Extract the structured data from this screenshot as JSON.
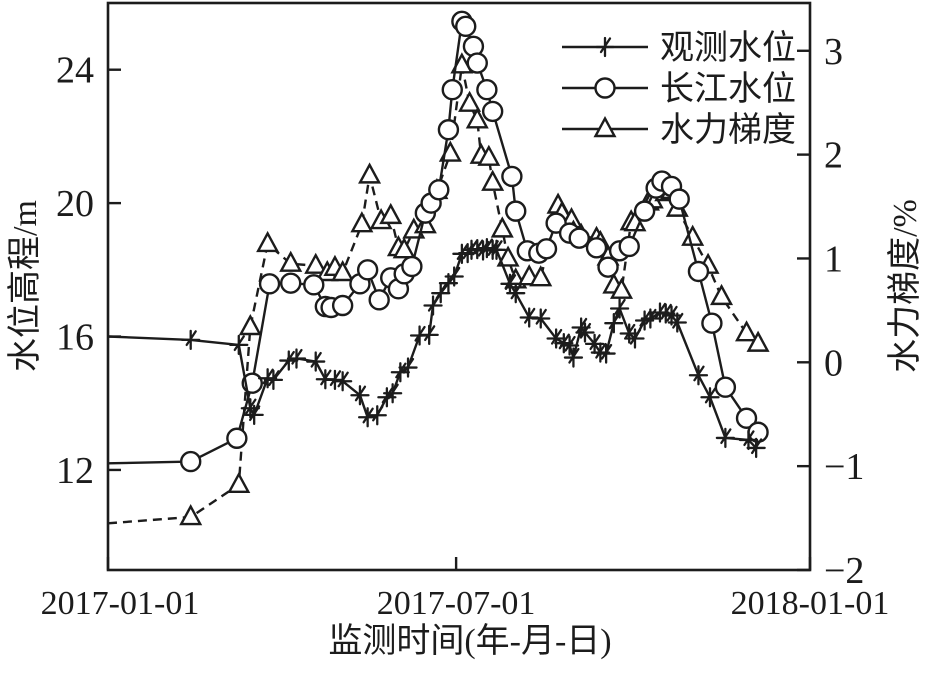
{
  "figure": {
    "background": "#ffffff",
    "ink_color": "#1c1c1c"
  },
  "chart_data": {
    "type": "line",
    "title": "",
    "xlabel": "监测时间(年-月-日)",
    "ylabel_left": "水位高程/m",
    "ylabel_right": "水力梯度/%",
    "grid": false,
    "legend_position": "top-right-inside",
    "x_unit": "days_since_2017-01-01",
    "xlim_days": [
      0,
      365
    ],
    "x_ticks": [
      {
        "day": 0,
        "label": "2017-01-01"
      },
      {
        "day": 181,
        "label": "2017-07-01"
      },
      {
        "day": 365,
        "label": "2018-01-01"
      }
    ],
    "ylim_left": [
      9,
      26
    ],
    "yticks_left": [
      12,
      16,
      20,
      24
    ],
    "ylim_right": [
      -2,
      3.46
    ],
    "yticks_right": [
      -2,
      -1,
      0,
      1,
      2,
      3
    ],
    "series": [
      {
        "key": "observed-water-level",
        "name": "观测水位",
        "axis": "left",
        "marker": "plus",
        "line": "solid",
        "points": [
          [
            0,
            16.0
          ],
          [
            43,
            15.9
          ],
          [
            68,
            15.75
          ],
          [
            74,
            13.85
          ],
          [
            76,
            13.65
          ],
          [
            83,
            14.75
          ],
          [
            86,
            14.7
          ],
          [
            94,
            15.28
          ],
          [
            98,
            15.34
          ],
          [
            108,
            15.25
          ],
          [
            113,
            14.72
          ],
          [
            118,
            14.7
          ],
          [
            122,
            14.66
          ],
          [
            131,
            14.24
          ],
          [
            135,
            13.58
          ],
          [
            140,
            13.64
          ],
          [
            145,
            14.18
          ],
          [
            148,
            14.3
          ],
          [
            152,
            14.93
          ],
          [
            156,
            15.07
          ],
          [
            162,
            16.03
          ],
          [
            167,
            16.05
          ],
          [
            169,
            16.93
          ],
          [
            173,
            17.3
          ],
          [
            177,
            17.6
          ],
          [
            180,
            17.8
          ],
          [
            184,
            18.48
          ],
          [
            187,
            18.5
          ],
          [
            189,
            18.6
          ],
          [
            192,
            18.62
          ],
          [
            195,
            18.58
          ],
          [
            197,
            18.65
          ],
          [
            200,
            18.6
          ],
          [
            202,
            18.6
          ],
          [
            209,
            17.58
          ],
          [
            212,
            17.3
          ],
          [
            219,
            16.57
          ],
          [
            225,
            16.54
          ],
          [
            233,
            15.94
          ],
          [
            237,
            15.8
          ],
          [
            240,
            15.73
          ],
          [
            242,
            15.37
          ],
          [
            246,
            16.27
          ],
          [
            248,
            16.12
          ],
          [
            253,
            15.78
          ],
          [
            256,
            15.52
          ],
          [
            259,
            15.49
          ],
          [
            263,
            16.4
          ],
          [
            266,
            16.84
          ],
          [
            271,
            16.09
          ],
          [
            274,
            15.94
          ],
          [
            279,
            16.48
          ],
          [
            282,
            16.54
          ],
          [
            287,
            16.72
          ],
          [
            290,
            16.69
          ],
          [
            293,
            16.63
          ],
          [
            296,
            16.42
          ],
          [
            307,
            14.84
          ],
          [
            313,
            14.18
          ],
          [
            321,
            12.96
          ],
          [
            333,
            12.9
          ],
          [
            337,
            12.66
          ]
        ]
      },
      {
        "key": "yangtze-river-level",
        "name": "长江水位",
        "axis": "left",
        "marker": "circle",
        "line": "solid",
        "points": [
          [
            0,
            12.2
          ],
          [
            43,
            12.25
          ],
          [
            67,
            12.95
          ],
          [
            75,
            14.6
          ],
          [
            84,
            17.58
          ],
          [
            95,
            17.6
          ],
          [
            107,
            17.55
          ],
          [
            113,
            16.9
          ],
          [
            116,
            16.87
          ],
          [
            122,
            16.93
          ],
          [
            131,
            17.58
          ],
          [
            135,
            18.0
          ],
          [
            141,
            17.1
          ],
          [
            147,
            17.76
          ],
          [
            151,
            17.43
          ],
          [
            154,
            17.88
          ],
          [
            158,
            18.1
          ],
          [
            165,
            19.7
          ],
          [
            168,
            20.0
          ],
          [
            172,
            20.4
          ],
          [
            177,
            22.2
          ],
          [
            179,
            23.4
          ],
          [
            184,
            25.45
          ],
          [
            186,
            25.3
          ],
          [
            190,
            24.7
          ],
          [
            192,
            24.2
          ],
          [
            197,
            23.4
          ],
          [
            200,
            22.75
          ],
          [
            210,
            20.8
          ],
          [
            212,
            19.76
          ],
          [
            218,
            18.57
          ],
          [
            224,
            18.5
          ],
          [
            228,
            18.63
          ],
          [
            233,
            19.4
          ],
          [
            240,
            19.1
          ],
          [
            245,
            18.95
          ],
          [
            254,
            18.66
          ],
          [
            260,
            18.08
          ],
          [
            266,
            18.57
          ],
          [
            271,
            18.7
          ],
          [
            279,
            19.76
          ],
          [
            285,
            20.45
          ],
          [
            288,
            20.66
          ],
          [
            293,
            20.5
          ],
          [
            297,
            20.12
          ],
          [
            307,
            17.95
          ],
          [
            314,
            16.4
          ],
          [
            321,
            14.48
          ],
          [
            332,
            13.55
          ],
          [
            338,
            13.13
          ]
        ]
      },
      {
        "key": "hydraulic-gradient",
        "name": "水力梯度",
        "axis": "right",
        "marker": "triangle",
        "line": "dashed",
        "points": [
          [
            0,
            -1.55
          ],
          [
            43,
            -1.49
          ],
          [
            68,
            -1.18
          ],
          [
            74,
            0.34
          ],
          [
            83,
            1.14
          ],
          [
            95,
            0.95
          ],
          [
            108,
            0.93
          ],
          [
            114,
            0.86
          ],
          [
            118,
            0.91
          ],
          [
            122,
            0.86
          ],
          [
            132,
            1.33
          ],
          [
            136,
            1.8
          ],
          [
            142,
            1.36
          ],
          [
            147,
            1.41
          ],
          [
            151,
            1.1
          ],
          [
            154,
            1.08
          ],
          [
            159,
            1.27
          ],
          [
            165,
            1.32
          ],
          [
            171,
            1.65
          ],
          [
            178,
            2.01
          ],
          [
            184,
            2.86
          ],
          [
            188,
            2.49
          ],
          [
            192,
            2.33
          ],
          [
            194,
            1.99
          ],
          [
            198,
            1.97
          ],
          [
            200,
            1.73
          ],
          [
            205,
            1.28
          ],
          [
            208,
            1.0
          ],
          [
            212,
            0.79
          ],
          [
            219,
            0.82
          ],
          [
            225,
            0.81
          ],
          [
            234,
            1.51
          ],
          [
            236,
            1.43
          ],
          [
            241,
            1.37
          ],
          [
            242,
            1.25
          ],
          [
            246,
            1.22
          ],
          [
            254,
            1.19
          ],
          [
            256,
            1.15
          ],
          [
            260,
            1.01
          ],
          [
            263,
            0.74
          ],
          [
            267,
            0.69
          ],
          [
            272,
            1.35
          ],
          [
            274,
            1.34
          ],
          [
            281,
            1.54
          ],
          [
            283,
            1.56
          ],
          [
            288,
            1.72
          ],
          [
            290,
            1.63
          ],
          [
            293,
            1.65
          ],
          [
            296,
            1.48
          ],
          [
            304,
            1.2
          ],
          [
            312,
            0.93
          ],
          [
            319,
            0.63
          ],
          [
            332,
            0.28
          ],
          [
            338,
            0.18
          ]
        ]
      }
    ]
  }
}
